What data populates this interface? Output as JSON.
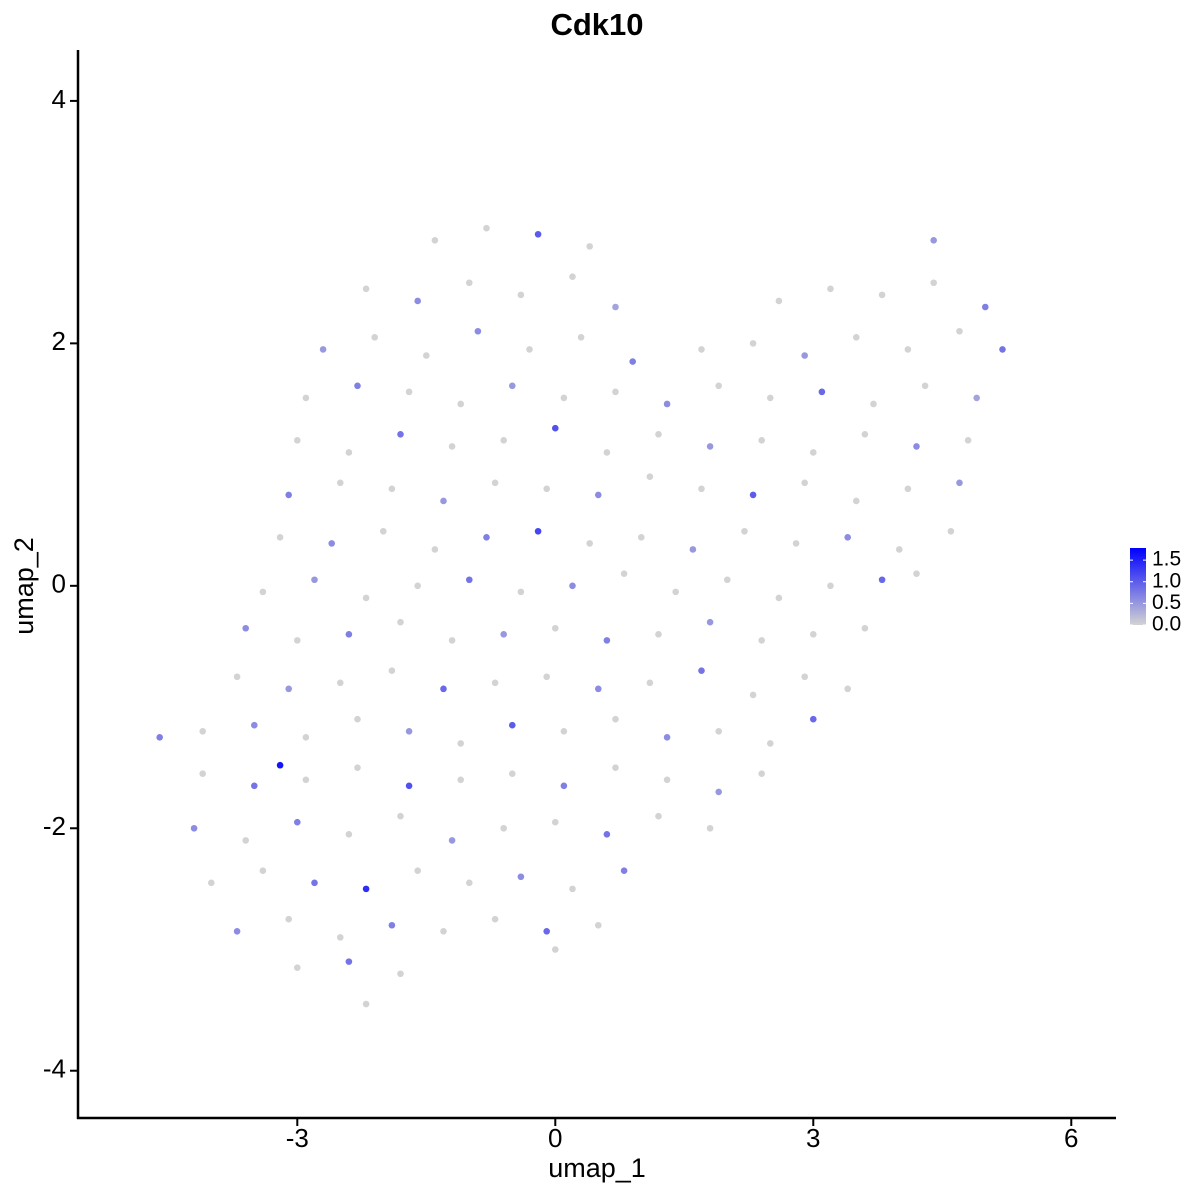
{
  "chart_data": {
    "type": "scatter",
    "title": "Cdk10",
    "x_label": "umap_1",
    "y_label": "umap_2",
    "xlim": [
      -5.55,
      6.52
    ],
    "ylim": [
      -4.39,
      4.42
    ],
    "xticks": [
      -3,
      0,
      3,
      6
    ],
    "yticks": [
      -4,
      -2,
      0,
      2,
      4
    ],
    "color_low": "#d3d3d3",
    "color_high": "#0000ff",
    "color_lim": [
      0,
      1.78
    ],
    "color_ticks": [
      {
        "value": 0,
        "label": "0.0"
      },
      {
        "value": 0.5,
        "label": "0.5"
      },
      {
        "value": 1,
        "label": "1.0"
      },
      {
        "value": 1.5,
        "label": "1.5"
      }
    ],
    "x": [
      -1.4,
      -0.8,
      -0.2,
      0.4,
      4.4,
      -2.2,
      -1.6,
      -1.0,
      -0.4,
      0.2,
      0.7,
      2.6,
      3.2,
      3.8,
      4.4,
      5.0,
      -2.7,
      -2.1,
      -1.5,
      -0.9,
      -0.3,
      0.3,
      0.9,
      1.7,
      2.3,
      2.9,
      3.5,
      4.1,
      4.7,
      5.2,
      -2.9,
      -2.3,
      -1.7,
      -1.1,
      -0.5,
      0.1,
      0.7,
      1.3,
      1.9,
      2.5,
      3.1,
      3.7,
      4.3,
      4.9,
      -3.0,
      -2.4,
      -1.8,
      -1.2,
      -0.6,
      0.0,
      0.6,
      1.2,
      1.8,
      2.4,
      3.0,
      3.6,
      4.2,
      4.8,
      -3.1,
      -2.5,
      -1.9,
      -1.3,
      -0.7,
      -0.1,
      0.5,
      1.1,
      1.7,
      2.3,
      2.9,
      3.5,
      4.1,
      4.7,
      -3.2,
      -2.6,
      -2.0,
      -1.4,
      -0.8,
      -0.2,
      0.4,
      1.0,
      1.6,
      2.2,
      2.8,
      3.4,
      4.0,
      4.6,
      -3.4,
      -2.8,
      -2.2,
      -1.6,
      -1.0,
      -0.4,
      0.2,
      0.8,
      1.4,
      2.0,
      2.6,
      3.2,
      3.8,
      4.2,
      -3.6,
      -3.0,
      -2.4,
      -1.8,
      -1.2,
      -0.6,
      0.0,
      0.6,
      1.2,
      1.8,
      2.4,
      3.0,
      3.6,
      -3.7,
      -3.1,
      -2.5,
      -1.9,
      -1.3,
      -0.7,
      -0.1,
      0.5,
      1.1,
      1.7,
      2.3,
      2.9,
      3.4,
      -4.6,
      -4.1,
      -3.5,
      -2.9,
      -2.3,
      -1.7,
      -1.1,
      -0.5,
      0.1,
      0.7,
      1.3,
      1.9,
      2.5,
      3.0,
      -4.1,
      -3.5,
      -2.9,
      -2.3,
      -1.7,
      -1.1,
      -0.5,
      0.1,
      0.7,
      1.3,
      1.9,
      2.4,
      -4.2,
      -3.6,
      -3.0,
      -2.4,
      -1.8,
      -1.2,
      -0.6,
      0.0,
      0.6,
      1.2,
      1.8,
      -4.0,
      -3.4,
      -2.8,
      -2.2,
      -1.6,
      -1.0,
      -0.4,
      0.2,
      0.8,
      -3.7,
      -3.1,
      -2.5,
      -1.9,
      -1.3,
      -0.7,
      -0.1,
      0.5,
      -3.0,
      -2.4,
      -1.8,
      -2.2,
      0.0,
      -3.2
    ],
    "y": [
      2.85,
      2.95,
      2.9,
      2.8,
      2.85,
      2.45,
      2.35,
      2.5,
      2.4,
      2.55,
      2.3,
      2.35,
      2.45,
      2.4,
      2.5,
      2.3,
      1.95,
      2.05,
      1.9,
      2.1,
      1.95,
      2.05,
      1.85,
      1.95,
      2.0,
      1.9,
      2.05,
      1.95,
      2.1,
      1.95,
      1.55,
      1.65,
      1.6,
      1.5,
      1.65,
      1.55,
      1.6,
      1.5,
      1.65,
      1.55,
      1.6,
      1.5,
      1.65,
      1.55,
      1.2,
      1.1,
      1.25,
      1.15,
      1.2,
      1.3,
      1.1,
      1.25,
      1.15,
      1.2,
      1.1,
      1.25,
      1.15,
      1.2,
      0.75,
      0.85,
      0.8,
      0.7,
      0.85,
      0.8,
      0.75,
      0.9,
      0.8,
      0.75,
      0.85,
      0.7,
      0.8,
      0.85,
      0.4,
      0.35,
      0.45,
      0.3,
      0.4,
      0.45,
      0.35,
      0.4,
      0.3,
      0.45,
      0.35,
      0.4,
      0.3,
      0.45,
      -0.05,
      0.05,
      -0.1,
      0.0,
      0.05,
      -0.05,
      0.0,
      0.1,
      -0.05,
      0.05,
      -0.1,
      0.0,
      0.05,
      0.1,
      -0.35,
      -0.45,
      -0.4,
      -0.3,
      -0.45,
      -0.4,
      -0.35,
      -0.45,
      -0.4,
      -0.3,
      -0.45,
      -0.4,
      -0.35,
      -0.75,
      -0.85,
      -0.8,
      -0.7,
      -0.85,
      -0.8,
      -0.75,
      -0.85,
      -0.8,
      -0.7,
      -0.9,
      -0.75,
      -0.85,
      -1.25,
      -1.2,
      -1.15,
      -1.25,
      -1.1,
      -1.2,
      -1.3,
      -1.15,
      -1.2,
      -1.1,
      -1.25,
      -1.2,
      -1.3,
      -1.1,
      -1.55,
      -1.65,
      -1.6,
      -1.5,
      -1.65,
      -1.6,
      -1.55,
      -1.65,
      -1.5,
      -1.6,
      -1.7,
      -1.55,
      -2.0,
      -2.1,
      -1.95,
      -2.05,
      -1.9,
      -2.1,
      -2.0,
      -1.95,
      -2.05,
      -1.9,
      -2.0,
      -2.45,
      -2.35,
      -2.45,
      -2.5,
      -2.35,
      -2.45,
      -2.4,
      -2.5,
      -2.35,
      -2.85,
      -2.75,
      -2.9,
      -2.8,
      -2.85,
      -2.75,
      -2.85,
      -2.8,
      -3.15,
      -3.1,
      -3.2,
      -3.45,
      -3.0,
      -1.48
    ],
    "values": [
      0,
      0,
      1.0,
      0,
      0.5,
      0,
      0.6,
      0,
      0,
      0,
      0.4,
      0,
      0,
      0,
      0,
      0.7,
      0.5,
      0,
      0,
      0.6,
      0,
      0,
      0.7,
      0,
      0,
      0.5,
      0,
      0,
      0,
      0.8,
      0,
      0.7,
      0,
      0,
      0.5,
      0,
      0,
      0.6,
      0,
      0,
      0.9,
      0,
      0,
      0.4,
      0,
      0,
      0.8,
      0,
      0,
      1.1,
      0,
      0,
      0.5,
      0,
      0,
      0,
      0.6,
      0,
      0.7,
      0,
      0,
      0.5,
      0,
      0,
      0.6,
      0,
      0,
      1.0,
      0,
      0,
      0,
      0.5,
      0,
      0.6,
      0,
      0,
      0.7,
      1.2,
      0,
      0,
      0.5,
      0,
      0,
      0.6,
      0,
      0,
      0,
      0.5,
      0,
      0,
      0.8,
      0,
      0.6,
      0,
      0,
      0,
      0,
      0,
      0.9,
      0,
      0.6,
      0,
      0.7,
      0,
      0,
      0.5,
      0,
      0.7,
      0,
      0.5,
      0,
      0,
      0,
      0,
      0.5,
      0,
      0,
      0.9,
      0,
      0,
      0.6,
      0,
      0.8,
      0,
      0,
      0,
      0.7,
      0,
      0.6,
      0,
      0,
      0.5,
      0,
      1.0,
      0,
      0,
      0.6,
      0,
      0,
      0.9,
      0,
      0.8,
      0,
      0,
      1.1,
      0,
      0,
      0.7,
      0,
      0,
      0.5,
      0,
      0.6,
      0,
      0.7,
      0,
      0,
      0.5,
      0,
      0,
      0.8,
      0,
      0,
      0,
      0,
      0.8,
      1.4,
      0,
      0,
      0.6,
      0,
      0.7,
      0.6,
      0,
      0,
      0.7,
      0,
      0,
      0.9,
      0,
      0,
      0.8,
      0,
      0,
      0,
      1.6
    ]
  }
}
